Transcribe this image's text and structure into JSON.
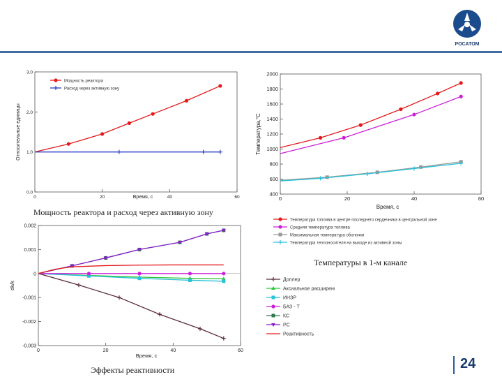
{
  "brand": {
    "logo_text": "РОСАТОМ"
  },
  "colors": {
    "accent": "#3f6fa0",
    "red": "#e41a1c",
    "blue": "#2b3cc4",
    "magenta": "#cc1fd8",
    "gray": "#999999",
    "cyan": "#27c2d8",
    "green": "#2fc43a",
    "dark": "#5a2a3a",
    "teal": "#2e7a4a",
    "purple": "#8a1fd0"
  },
  "captions": {
    "power": "Мощность реактора и расход  через активную зону",
    "temps": "Температуры в 1-м канале",
    "reactivity": "Эффекты реактивности"
  },
  "page_number": "24",
  "chart_data": [
    {
      "id": "power",
      "type": "line",
      "xlabel": "Время, с",
      "ylabel": "Относительные единицы",
      "xlim": [
        0,
        60
      ],
      "ylim": [
        0,
        3
      ],
      "xticks": [
        "0",
        "20",
        "40",
        "60"
      ],
      "yticks": [
        "0.0",
        "1.0",
        "2.0",
        "3.0"
      ],
      "legend": [
        "Мощность реактора",
        "Расход через активную зону"
      ],
      "series": [
        {
          "name": "Мощность реактора",
          "color": "#e41a1c",
          "marker": "dot",
          "x": [
            0,
            10,
            20,
            28,
            35,
            45,
            55
          ],
          "y": [
            1.0,
            1.2,
            1.45,
            1.72,
            1.95,
            2.28,
            2.65
          ]
        },
        {
          "name": "Расход через активную зону",
          "color": "#2b3cc4",
          "marker": "plus",
          "x": [
            0,
            25,
            50,
            55
          ],
          "y": [
            1.0,
            1.0,
            1.0,
            1.0
          ]
        }
      ]
    },
    {
      "id": "temps",
      "type": "line",
      "xlabel": "Время, с",
      "ylabel": "Температура,°С",
      "xlim": [
        0,
        60
      ],
      "ylim": [
        400,
        2000
      ],
      "xticks": [
        "0",
        "20",
        "40",
        "60"
      ],
      "yticks": [
        "400",
        "600",
        "800",
        "1000",
        "1200",
        "1400",
        "1600",
        "1800",
        "2000"
      ],
      "legend": [
        "Температура топлива в центре последнего сердечника в центральной зоне",
        "Средняя температура топлива",
        "Максимальная температура оболочки",
        "Температура теплоносителя на выходе из активной зоны"
      ],
      "series": [
        {
          "name": "Температура топлива в центре",
          "color": "#e41a1c",
          "marker": "dot",
          "x": [
            0,
            12,
            24,
            36,
            47,
            54
          ],
          "y": [
            1020,
            1150,
            1320,
            1530,
            1740,
            1880
          ]
        },
        {
          "name": "Средняя температура топлива",
          "color": "#cc1fd8",
          "marker": "dot",
          "x": [
            0,
            19,
            40,
            54
          ],
          "y": [
            940,
            1150,
            1460,
            1700
          ]
        },
        {
          "name": "Максимальная температура оболочки",
          "color": "#999999",
          "marker": "square",
          "x": [
            0,
            14,
            29,
            42,
            54
          ],
          "y": [
            585,
            625,
            690,
            760,
            830
          ]
        },
        {
          "name": "Температура теплоносителя на выходе",
          "color": "#27c2d8",
          "marker": "plus",
          "x": [
            0,
            12,
            26,
            40,
            54
          ],
          "y": [
            575,
            610,
            670,
            740,
            810
          ]
        }
      ]
    },
    {
      "id": "reactivity",
      "type": "line",
      "xlabel": "Время, с",
      "ylabel": "dk/k",
      "xlim": [
        0,
        60
      ],
      "ylim": [
        -0.003,
        0.002
      ],
      "xticks": [
        "0",
        "20",
        "40",
        "60"
      ],
      "yticks": [
        "-0.003",
        "-0.002",
        "-0.001",
        "0",
        "0.001",
        "0.002"
      ],
      "legend": [
        "Доплер",
        "Аксиальное расширение топлива",
        "ИНЗР",
        "БАЗ - Т",
        "КС",
        "РС",
        "Реактивность"
      ],
      "series": [
        {
          "name": "Доплер",
          "color": "#5a2a3a",
          "marker": "plus",
          "x": [
            0,
            12,
            24,
            36,
            48,
            55
          ],
          "y": [
            0,
            -0.00048,
            -0.001,
            -0.0017,
            -0.0023,
            -0.0027
          ]
        },
        {
          "name": "Аксиальное расширение топлива",
          "color": "#2fc43a",
          "marker": "tri",
          "x": [
            0,
            15,
            30,
            45,
            55
          ],
          "y": [
            0,
            -8e-05,
            -0.00015,
            -0.0002,
            -0.00022
          ]
        },
        {
          "name": "ИНЗР",
          "color": "#27c2d8",
          "marker": "square",
          "x": [
            0,
            15,
            30,
            45,
            55
          ],
          "y": [
            0,
            -0.0001,
            -0.0002,
            -0.00028,
            -0.00032
          ]
        },
        {
          "name": "БАЗ - Т",
          "color": "#cc1fd8",
          "marker": "dot",
          "x": [
            0,
            15,
            30,
            45,
            55
          ],
          "y": [
            0,
            0,
            0,
            0,
            0
          ]
        },
        {
          "name": "КС",
          "color": "#2e7a4a",
          "marker": "square",
          "x": [
            0,
            10,
            20,
            30,
            42,
            50,
            55
          ],
          "y": [
            0,
            0.00032,
            0.00065,
            0.001,
            0.0013,
            0.00165,
            0.0018
          ]
        },
        {
          "name": "РС",
          "color": "#8a1fd0",
          "marker": "tridown",
          "x": [
            0,
            10,
            20,
            30,
            42,
            50,
            55
          ],
          "y": [
            0,
            0.00032,
            0.00065,
            0.001,
            0.0013,
            0.00165,
            0.0018
          ]
        },
        {
          "name": "Реактивность",
          "color": "#e41a1c",
          "marker": "none",
          "x": [
            0,
            5,
            10,
            20,
            30,
            40,
            55
          ],
          "y": [
            0,
            0.00018,
            0.00028,
            0.00033,
            0.00035,
            0.00036,
            0.00036
          ]
        }
      ]
    }
  ]
}
